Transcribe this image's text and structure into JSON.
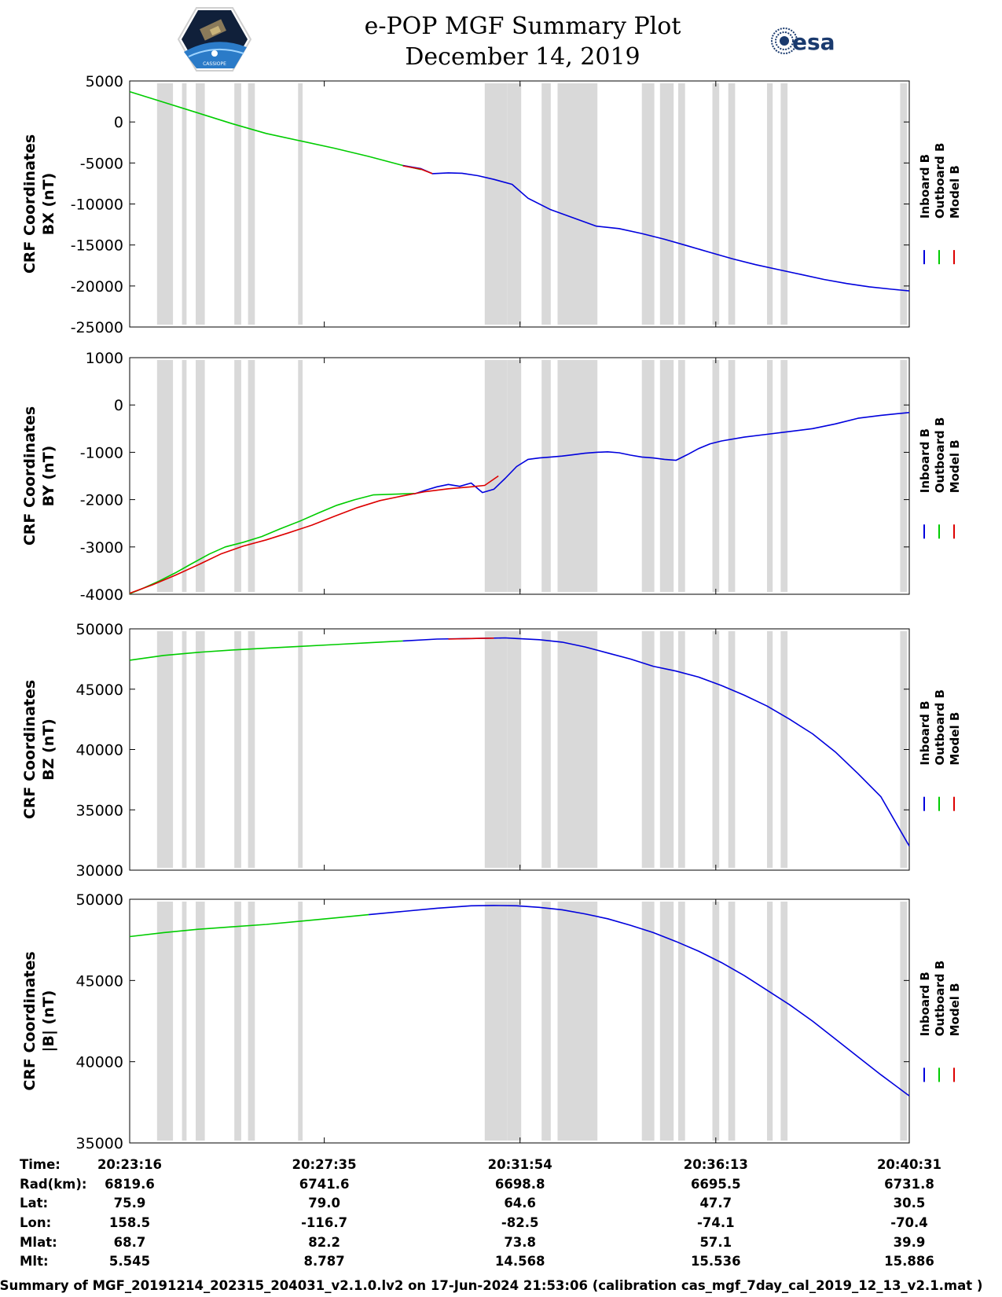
{
  "header": {
    "title": "e-POP MGF Summary Plot",
    "date": "December 14, 2019",
    "left_logo_text": "CASSIOPE",
    "right_logo_text": "esa"
  },
  "colors": {
    "inboard": "#0000dd",
    "outboard": "#00cc00",
    "model": "#dd0000",
    "shade": "#d9d9d9"
  },
  "legend": [
    "Inboard B",
    "Outboard B",
    "Model B"
  ],
  "chart_data": [
    {
      "type": "line",
      "ylabel": [
        "CRF Coordinates",
        "BX (nT)"
      ],
      "ylim": [
        -25000,
        5000
      ],
      "yticks": [
        5000,
        0,
        -5000,
        -10000,
        -15000,
        -20000,
        -25000
      ],
      "x_minutes_range": [
        0,
        17.25
      ],
      "series": [
        {
          "name": "Outboard B",
          "x": [
            0,
            1.5,
            3,
            4.5,
            6,
            7.5,
            9,
            10.5,
            12.0,
            12.8
          ],
          "y": [
            3700,
            2400,
            1100,
            -200,
            -1400,
            -2300,
            -3200,
            -4200,
            -5300,
            -5800
          ]
        },
        {
          "name": "Inboard B",
          "x": [
            12.0,
            12.8,
            13.3,
            14.0,
            14.6,
            15.3,
            16.0,
            16.8,
            17.5,
            18.5,
            19.5,
            20.5,
            21.5,
            22.5,
            23.5,
            24.5,
            25.5,
            26.5,
            27.5,
            28.5,
            29.5,
            30.5,
            31.5,
            32.5,
            33.5,
            34.25
          ],
          "y": [
            -5300,
            -5700,
            -6300,
            -6200,
            -6250,
            -6550,
            -7000,
            -7600,
            -9300,
            -10700,
            -11700,
            -12700,
            -13000,
            -13600,
            -14300,
            -15100,
            -15900,
            -16700,
            -17400,
            -18000,
            -18600,
            -19200,
            -19700,
            -20100,
            -20400,
            -20600
          ]
        },
        {
          "name": "Model B",
          "x": [
            12.0,
            12.8,
            13.3
          ],
          "y": [
            -5350,
            -5750,
            -6300
          ]
        }
      ]
    },
    {
      "type": "line",
      "ylabel": [
        "CRF Coordinates",
        "BY (nT)"
      ],
      "ylim": [
        -4000,
        1000
      ],
      "yticks": [
        1000,
        0,
        -1000,
        -2000,
        -3000,
        -4000
      ],
      "series": [
        {
          "name": "Outboard B",
          "x": [
            0,
            0.6,
            1.3,
            2.0,
            2.7,
            3.5,
            4.2,
            5.0,
            5.8,
            6.6,
            7.5,
            8.3,
            9.1,
            9.9,
            10.7,
            12.5
          ],
          "y": [
            -3990,
            -3870,
            -3720,
            -3550,
            -3360,
            -3150,
            -3000,
            -2900,
            -2780,
            -2620,
            -2450,
            -2280,
            -2120,
            -2000,
            -1900,
            -1870
          ]
        },
        {
          "name": "Inboard B",
          "x": [
            12.5,
            13.0,
            13.5,
            14.0,
            14.5,
            15.0,
            15.5,
            16.0,
            16.5,
            17.0,
            17.5,
            18.0,
            18.5,
            19.0,
            19.5,
            20.0,
            20.5,
            21.0,
            21.5,
            22.0,
            22.5,
            23.0,
            23.5,
            24.0,
            24.5,
            25.0,
            25.5,
            26.0,
            27.0,
            28.0,
            29.0,
            30.0,
            31.0,
            32.0,
            33.0,
            34.25
          ],
          "y": [
            -1880,
            -1800,
            -1730,
            -1680,
            -1720,
            -1650,
            -1850,
            -1780,
            -1550,
            -1300,
            -1150,
            -1120,
            -1100,
            -1080,
            -1050,
            -1020,
            -1000,
            -990,
            -1010,
            -1060,
            -1100,
            -1120,
            -1150,
            -1170,
            -1050,
            -920,
            -820,
            -760,
            -680,
            -620,
            -560,
            -500,
            -400,
            -280,
            -220,
            -160
          ]
        },
        {
          "name": "Model B",
          "x": [
            0,
            1.0,
            2.0,
            3.0,
            4.0,
            5.0,
            6.0,
            7.0,
            8.0,
            9.0,
            10.0,
            11.0,
            12.0,
            13.0,
            14.0,
            15.0,
            15.6,
            16.2
          ],
          "y": [
            -3980,
            -3800,
            -3600,
            -3380,
            -3150,
            -2980,
            -2850,
            -2700,
            -2540,
            -2350,
            -2170,
            -2020,
            -1920,
            -1830,
            -1770,
            -1730,
            -1700,
            -1500
          ]
        }
      ]
    },
    {
      "type": "line",
      "ylabel": [
        "CRF Coordinates",
        "BZ (nT)"
      ],
      "ylim": [
        30000,
        50000
      ],
      "yticks": [
        50000,
        45000,
        40000,
        35000,
        30000
      ],
      "series": [
        {
          "name": "Outboard B",
          "x": [
            0,
            1.5,
            3,
            4.5,
            6,
            7.5,
            9.0,
            10.5,
            12.0
          ],
          "y": [
            47400,
            47800,
            48050,
            48250,
            48400,
            48550,
            48700,
            48850,
            49000
          ]
        },
        {
          "name": "Inboard B",
          "x": [
            12.0,
            13.5,
            15.0,
            16.5,
            17.0,
            18.0,
            19.0,
            20.0,
            21.0,
            22.0,
            23.0,
            24.0,
            25.0,
            26.0,
            27.0,
            28.0,
            29.0,
            30.0,
            31.0,
            32.0,
            33.0,
            34.25
          ],
          "y": [
            49000,
            49150,
            49200,
            49250,
            49200,
            49100,
            48900,
            48500,
            48000,
            47500,
            46900,
            46500,
            46000,
            45300,
            44500,
            43600,
            42500,
            41300,
            39800,
            38000,
            36100,
            32000
          ]
        },
        {
          "name": "Model B",
          "x": [
            14.0,
            15.0,
            16.0
          ],
          "y": [
            49150,
            49200,
            49230
          ]
        }
      ]
    },
    {
      "type": "line",
      "ylabel": [
        "CRF Coordinates",
        "|B| (nT)"
      ],
      "ylim": [
        35000,
        50000
      ],
      "yticks": [
        50000,
        45000,
        40000,
        35000
      ],
      "series": [
        {
          "name": "Outboard B",
          "x": [
            0,
            1.5,
            3,
            4.5,
            6,
            7.5,
            9.0,
            10.5
          ],
          "y": [
            47700,
            47950,
            48150,
            48300,
            48450,
            48650,
            48850,
            49050
          ]
        },
        {
          "name": "Inboard B",
          "x": [
            10.5,
            12.0,
            13.5,
            15.0,
            16.0,
            17.0,
            18.0,
            19.0,
            20.0,
            21.0,
            22.0,
            23.0,
            24.0,
            25.0,
            26.0,
            27.0,
            28.0,
            29.0,
            30.0,
            31.0,
            32.0,
            33.0,
            34.25
          ],
          "y": [
            49050,
            49250,
            49450,
            49600,
            49620,
            49600,
            49500,
            49350,
            49100,
            48800,
            48400,
            47950,
            47400,
            46800,
            46100,
            45300,
            44400,
            43500,
            42500,
            41400,
            40300,
            39200,
            37900
          ]
        }
      ]
    }
  ],
  "gaps_minutes": [
    [
      1.2,
      1.9
    ],
    [
      2.3,
      2.5
    ],
    [
      2.9,
      3.3
    ],
    [
      4.6,
      4.9
    ],
    [
      5.2,
      5.5
    ],
    [
      7.4,
      7.6
    ],
    [
      15.6,
      16.6
    ],
    [
      16.6,
      17.2
    ],
    [
      18.1,
      18.5
    ],
    [
      18.8,
      20.55
    ],
    [
      22.5,
      23.05
    ],
    [
      23.3,
      23.9
    ],
    [
      24.1,
      24.4
    ],
    [
      25.6,
      25.9
    ],
    [
      26.3,
      26.6
    ],
    [
      28.0,
      28.25
    ],
    [
      28.6,
      28.9
    ],
    [
      33.85,
      34.15
    ]
  ],
  "xaxis_labels": {
    "row_labels": [
      "Time:",
      "Rad(km):",
      "Lat:",
      "Lon:",
      "Mlat:",
      "Mlt:"
    ],
    "columns": [
      [
        "20:23:16",
        "6819.6",
        "75.9",
        "158.5",
        "68.7",
        "5.545"
      ],
      [
        "20:27:35",
        "6741.6",
        "79.0",
        "-116.7",
        "82.2",
        "8.787"
      ],
      [
        "20:31:54",
        "6698.8",
        "64.6",
        "-82.5",
        "73.8",
        "14.568"
      ],
      [
        "20:36:13",
        "6695.5",
        "47.7",
        "-74.1",
        "57.1",
        "15.536"
      ],
      [
        "20:40:31",
        "6731.8",
        "30.5",
        "-70.4",
        "39.9",
        "15.886"
      ]
    ]
  },
  "footer": "Summary of MGF_20191214_202315_204031_v2.1.0.lv2 on 17-Jun-2024 21:53:06 (calibration cas_mgf_7day_cal_2019_12_13_v2.1.mat )"
}
